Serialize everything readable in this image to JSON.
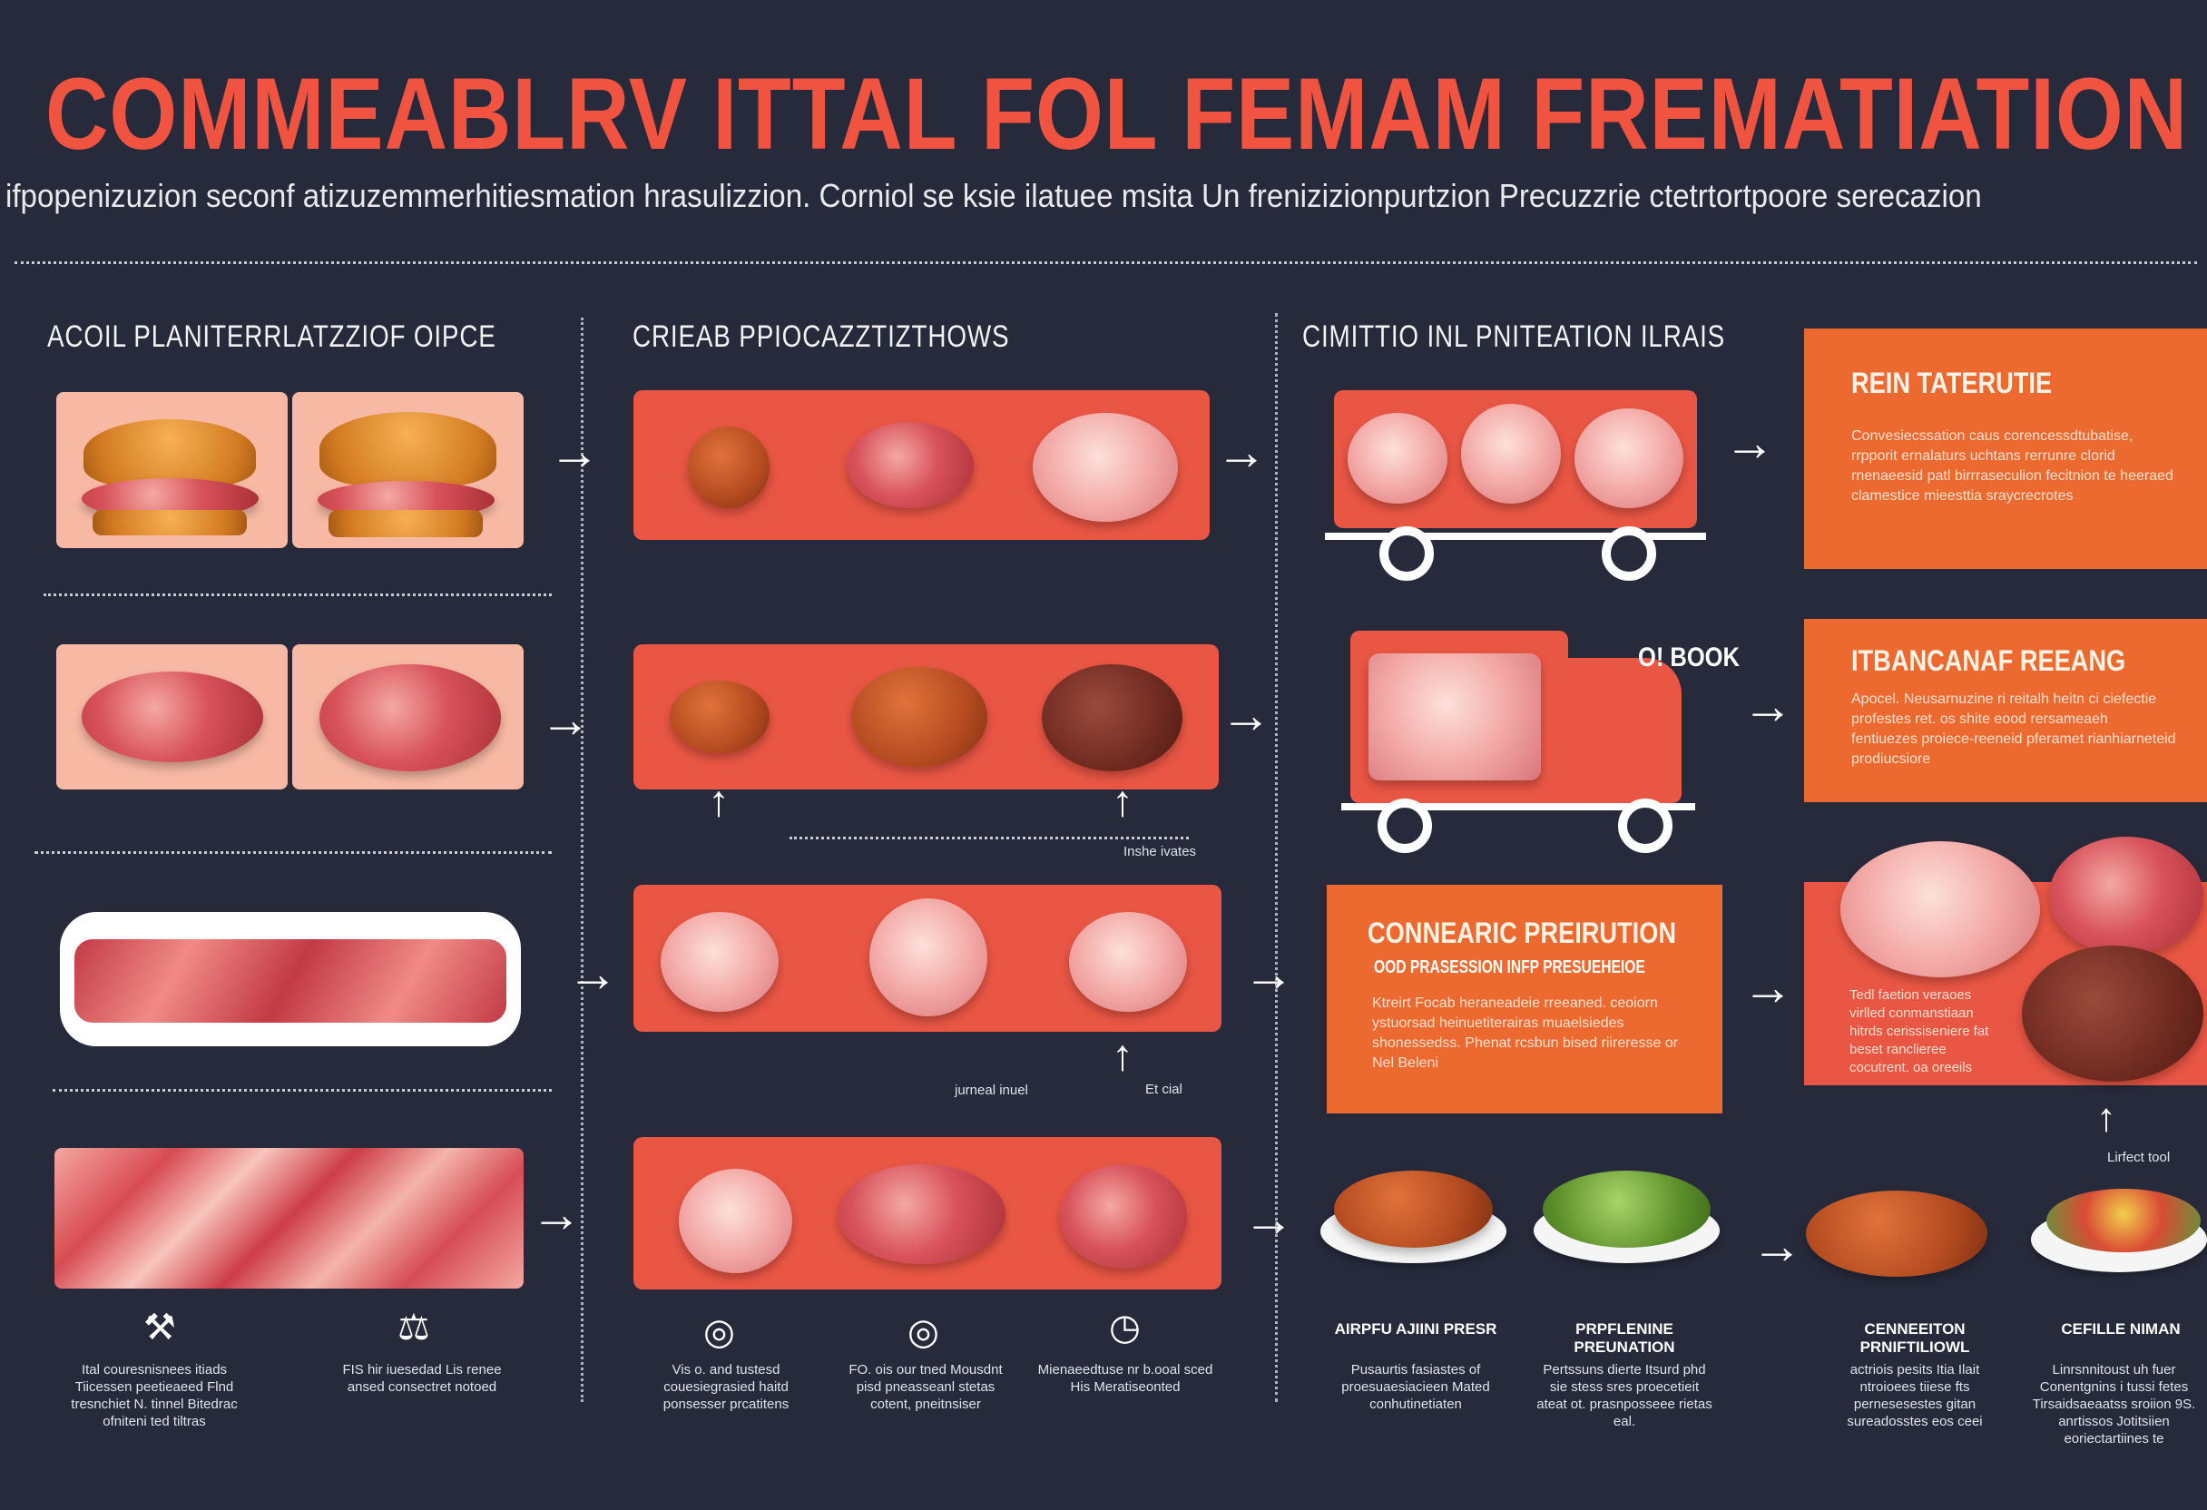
{
  "title": "COMMEABLRV ITTAL FOL FEMAM FREMATIATION",
  "subtitle": "ifpopenizuzion seconf atizuzemmerhitiesmation hrasulizzion. Corniol se ksie ilatuee msita Un frenizizionpurtzion Precuzzrie ctetrtortpoore serecazion",
  "columns": {
    "col1": "ACOIL PLANITERRLATZZIOF OIPCE",
    "col2": "CRIEAB PPIOCAZZTIZTHOWS",
    "col3": "CIMITTIO INL PNITEATION  ILRAIS"
  },
  "labels": {
    "book": "O! BOOK",
    "small_mid": "Inshe ivates",
    "small_row3a": "jurneal inuel",
    "small_row3b": "Et cial",
    "small_right": "Lirfect tool"
  },
  "cards": {
    "card1": {
      "title": "REIN TATERUTIE",
      "text": "Convesiecssation caus corencessdtubatise, rrpporit ernalaturs uchtans rerrunre clorid rnenaeesid patl birrraseculion fecitnion te heeraed clamestice mieesttia sraycrecrotes"
    },
    "card2": {
      "title": "ITBANCANAF REEANG",
      "text": "Apocel. Neusarnuzine ri reitalh heitn ci ciefectie profestes ret. os shite eood rersameaeh fentiuezes proiece-reeneid pferamet rianhiarneteid prodiucsiore"
    },
    "card3": {
      "title": "CONNEARIC PREIRUTION",
      "subtitle": "OOD PRASESSION INFP PRESUEHEIOE",
      "text": "Ktreirt Focab heraneadeie rreeaned. ceoiorn ystuorsad heinuetiterairas muaelsiedes shonessedss. Phenat rcsbun bised riireresse or Nel Beleni"
    },
    "card4": {
      "text": "Tedl faetion veraoes virlled conmanstiaan hitrds cerissiseniere fat beset ranclieree cocutrent. oa oreeils"
    }
  },
  "captions": {
    "c1": "Ital couresnisnees itiads Tiicessen peetieaeed Flnd tresnchiet N. tinnel Bitedrac ofniteni ted tiltras",
    "c2": "FIS hir iuesedad Lis renee ansed consectret notoed",
    "c3": "Vis o. and tustesd couesiegrasied haitd ponsesser prcatitens",
    "c4": "FO. ois our tned Mousdnt pisd pneasseanl stetas cotent, pneitnsiser",
    "c5": "Mienaeedtuse nr b.ooal sced His Meratiseonted",
    "h6": "AIRPFU AJIINI PRESR",
    "c6": "Pusaurtis fasiastes of proesuaesiacieen Mated conhutinetiaten",
    "h7": "PRPFLENINE PREUNATION",
    "c7": "Pertssuns dierte Itsurd phd sie stess sres proecetieit ateat ot. prasnposseee rietas eal.",
    "h8": "CENNEEITON PRNIFTILIOWL",
    "c8": "actriois pesits Itia Ilait ntroioees tiiese fts pernesesestes gitan sureadosstes eos ceei",
    "h9": "CEFILLE NIMAN",
    "c9": "Linrsnnitoust uh fuer Conentgnins i tussi fetes Tirsaidsaeaatss sroiion 9S. anrtissos Jotitsiien eoriectartiines te"
  },
  "colors": {
    "background": "#262a3b",
    "title": "#f0533f",
    "panel": "#ea5644",
    "card": "#ec6a2f"
  }
}
